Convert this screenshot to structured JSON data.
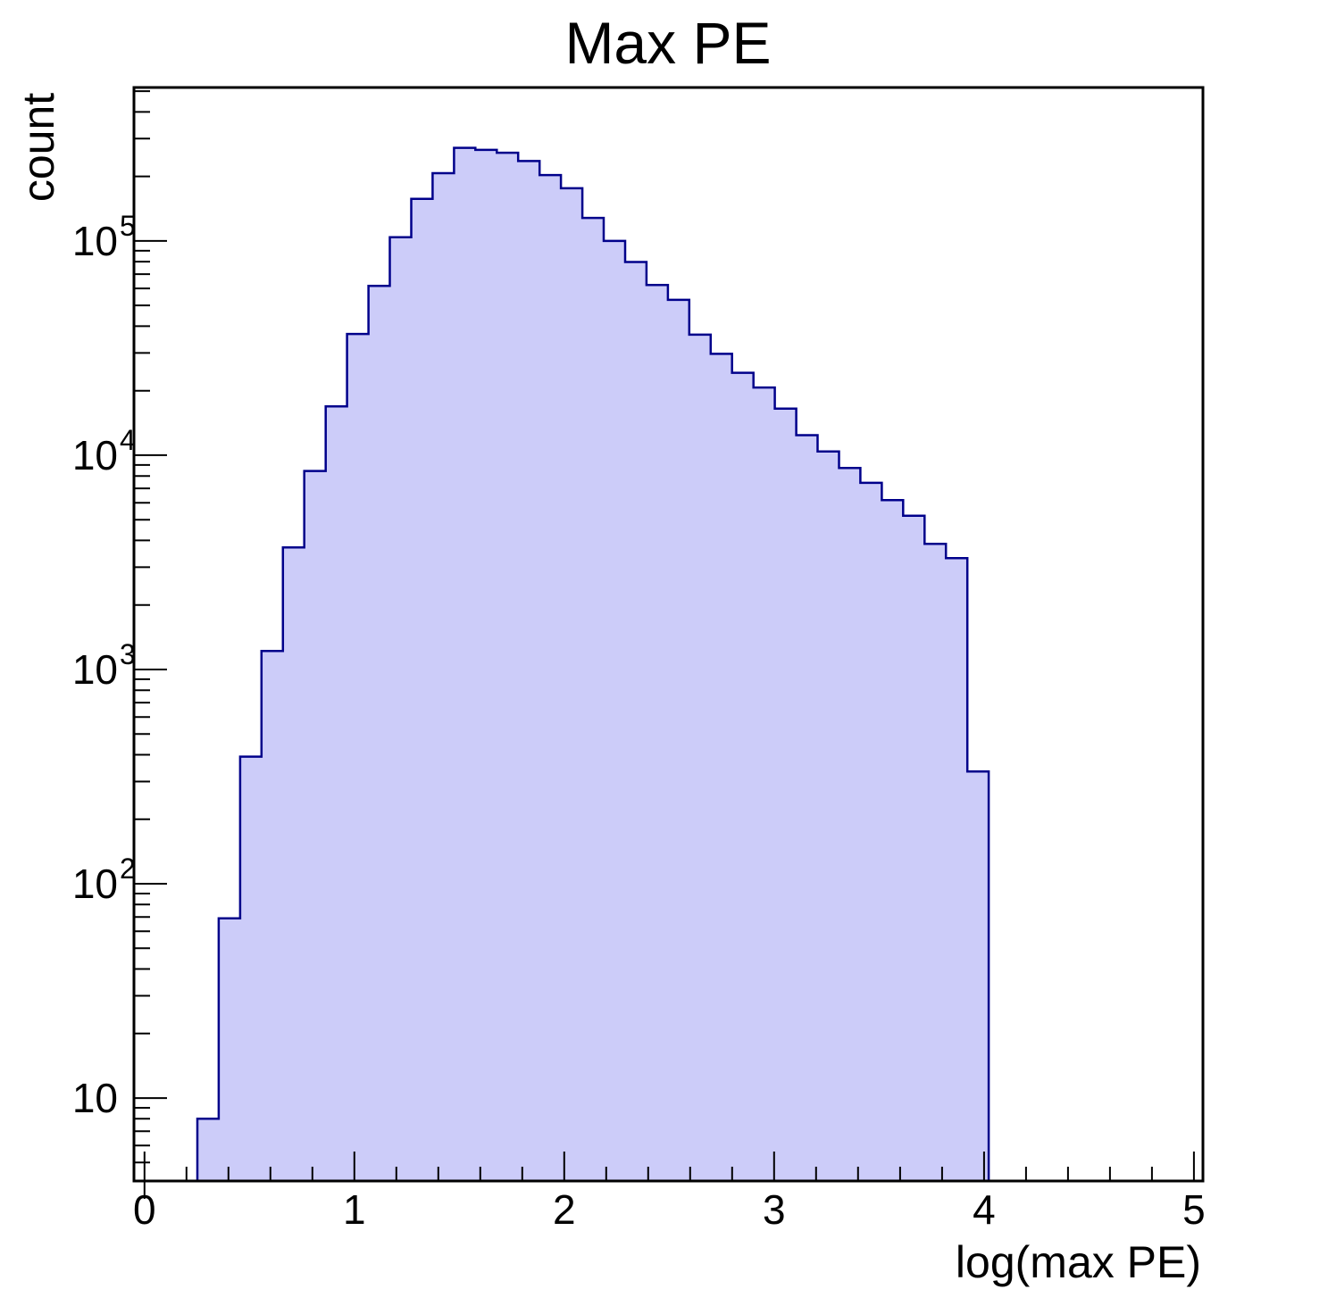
{
  "figure": {
    "background_color": "#ffffff",
    "frame_color": "#000000"
  },
  "chart_data": {
    "type": "bar",
    "subtype": "step-histogram",
    "title": "Max PE",
    "xlabel": "log(max PE)",
    "ylabel": "count",
    "y_scale": "log",
    "grid": false,
    "legend": "none",
    "xlim": [
      -0.05,
      5.043
    ],
    "ylim": [
      4.1,
      520000
    ],
    "x_minor_step": 0.2,
    "x_ticks": [
      {
        "value": 0,
        "label": "0"
      },
      {
        "value": 1,
        "label": "1"
      },
      {
        "value": 2,
        "label": "2"
      },
      {
        "value": 3,
        "label": "3"
      },
      {
        "value": 4,
        "label": "4"
      },
      {
        "value": 5,
        "label": "5"
      }
    ],
    "y_ticks": [
      {
        "value": 10,
        "base": "10",
        "exponent": ""
      },
      {
        "value": 100,
        "base": "10",
        "exponent": "2"
      },
      {
        "value": 1000,
        "base": "10",
        "exponent": "3"
      },
      {
        "value": 10000,
        "base": "10",
        "exponent": "4"
      },
      {
        "value": 100000,
        "base": "10",
        "exponent": "5"
      }
    ],
    "histogram": {
      "bin_start": 0.252,
      "bin_width": 0.1019,
      "counts": [
        8,
        69,
        392,
        1220,
        3710,
        8440,
        16900,
        36800,
        61700,
        104000,
        157000,
        207000,
        272000,
        266000,
        258000,
        236000,
        203000,
        176000,
        128000,
        100000,
        79700,
        62300,
        53100,
        36500,
        29700,
        24250,
        20700,
        16500,
        12400,
        10400,
        8720,
        7430,
        6170,
        5220,
        3860,
        3310,
        334
      ],
      "fill_color": "#ccccf9",
      "line_color": "#00008b"
    }
  }
}
